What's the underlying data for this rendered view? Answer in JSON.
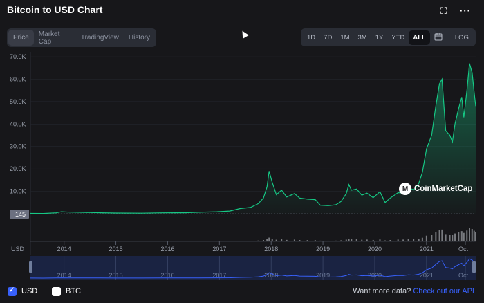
{
  "header": {
    "title": "Bitcoin to USD Chart",
    "expand_icon": "expand-icon",
    "more_icon": "more-icon"
  },
  "tabs": [
    {
      "label": "Price",
      "active": true
    },
    {
      "label": "Market Cap",
      "active": false
    },
    {
      "label": "TradingView",
      "active": false
    },
    {
      "label": "History",
      "active": false
    }
  ],
  "ranges": [
    {
      "label": "1D",
      "active": false
    },
    {
      "label": "7D",
      "active": false
    },
    {
      "label": "1M",
      "active": false
    },
    {
      "label": "3M",
      "active": false
    },
    {
      "label": "1Y",
      "active": false
    },
    {
      "label": "YTD",
      "active": false
    },
    {
      "label": "ALL",
      "active": true
    }
  ],
  "calendar_icon": "calendar-icon",
  "log_label": "LOG",
  "watermark": "CoinMarketCap",
  "footer": {
    "usd_label": "USD",
    "usd_checked": true,
    "btc_label": "BTC",
    "btc_checked": false,
    "more_data_text": "Want more data?",
    "api_link_text": "Check out our API"
  },
  "colors": {
    "background": "#17171a",
    "line": "#16c784",
    "accent": "#3861fb",
    "navigator": "#1e2a4a"
  },
  "chart_data": {
    "type": "area",
    "currency_label": "USD",
    "current_price_label": "145",
    "y_ticks": [
      "10.0K",
      "20.0K",
      "30.0K",
      "40.0K",
      "50.0K",
      "60.0K",
      "70.0K"
    ],
    "y_tick_values": [
      10000,
      20000,
      30000,
      40000,
      50000,
      60000,
      70000
    ],
    "ylim": [
      0,
      70000
    ],
    "x_ticks": [
      "2014",
      "2015",
      "2016",
      "2017",
      "2018",
      "2019",
      "2020",
      "2021",
      "Oct"
    ],
    "x_tick_values": [
      2014,
      2015,
      2016,
      2017,
      2018,
      2019,
      2020,
      2021,
      2021.75
    ],
    "xlim": [
      2013.35,
      2021.95
    ],
    "series": [
      {
        "values": [
          [
            2013.35,
            145
          ],
          [
            2013.6,
            110
          ],
          [
            2013.85,
            400
          ],
          [
            2013.95,
            900
          ],
          [
            2014.1,
            700
          ],
          [
            2014.4,
            600
          ],
          [
            2014.7,
            420
          ],
          [
            2015.0,
            300
          ],
          [
            2015.5,
            260
          ],
          [
            2015.9,
            400
          ],
          [
            2016.3,
            430
          ],
          [
            2016.6,
            650
          ],
          [
            2016.95,
            900
          ],
          [
            2017.2,
            1200
          ],
          [
            2017.4,
            2300
          ],
          [
            2017.6,
            2800
          ],
          [
            2017.75,
            4500
          ],
          [
            2017.85,
            7000
          ],
          [
            2017.92,
            12000
          ],
          [
            2017.96,
            19000
          ],
          [
            2018.02,
            14000
          ],
          [
            2018.1,
            8500
          ],
          [
            2018.2,
            10500
          ],
          [
            2018.3,
            7500
          ],
          [
            2018.45,
            9000
          ],
          [
            2018.55,
            7000
          ],
          [
            2018.7,
            6500
          ],
          [
            2018.85,
            6300
          ],
          [
            2018.95,
            3800
          ],
          [
            2019.1,
            3600
          ],
          [
            2019.25,
            4000
          ],
          [
            2019.35,
            5500
          ],
          [
            2019.45,
            9000
          ],
          [
            2019.5,
            13000
          ],
          [
            2019.55,
            10500
          ],
          [
            2019.65,
            11000
          ],
          [
            2019.75,
            8300
          ],
          [
            2019.85,
            9200
          ],
          [
            2019.97,
            7200
          ],
          [
            2020.1,
            9800
          ],
          [
            2020.2,
            5000
          ],
          [
            2020.3,
            7000
          ],
          [
            2020.45,
            9400
          ],
          [
            2020.55,
            9200
          ],
          [
            2020.65,
            11700
          ],
          [
            2020.75,
            10600
          ],
          [
            2020.85,
            13500
          ],
          [
            2020.92,
            18500
          ],
          [
            2021.0,
            29000
          ],
          [
            2021.1,
            35000
          ],
          [
            2021.18,
            48000
          ],
          [
            2021.25,
            58000
          ],
          [
            2021.3,
            60000
          ],
          [
            2021.37,
            37000
          ],
          [
            2021.45,
            35000
          ],
          [
            2021.5,
            32000
          ],
          [
            2021.55,
            40000
          ],
          [
            2021.62,
            47000
          ],
          [
            2021.68,
            52000
          ],
          [
            2021.72,
            43000
          ],
          [
            2021.78,
            55000
          ],
          [
            2021.83,
            67000
          ],
          [
            2021.88,
            63000
          ],
          [
            2021.92,
            54000
          ],
          [
            2021.95,
            48000
          ]
        ]
      }
    ],
    "navigator_x_ticks": [
      "2014",
      "2015",
      "2016",
      "2017",
      "2018",
      "2019",
      "2020",
      "2021",
      "Oct"
    ]
  }
}
